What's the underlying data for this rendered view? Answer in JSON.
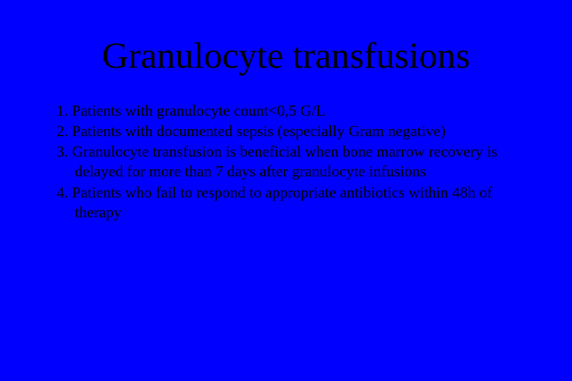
{
  "slide": {
    "background_color": "#0000ff",
    "text_color": "#000000",
    "font_family": "Times New Roman",
    "title": "Granulocyte transfusions",
    "title_fontsize": 52,
    "body_fontsize": 22,
    "items": [
      "1. Patients with granulocyte count<0,5 G/L",
      "2. Patients with documented sepsis (especially Gram negative)",
      "3. Granulocyte transfusion is beneficial when bone marrow recovery is delayed for more than 7 days after granulocyte infusions",
      "4. Patients who fail to respond to appropriate antibiotics within 48h of therapy"
    ]
  }
}
